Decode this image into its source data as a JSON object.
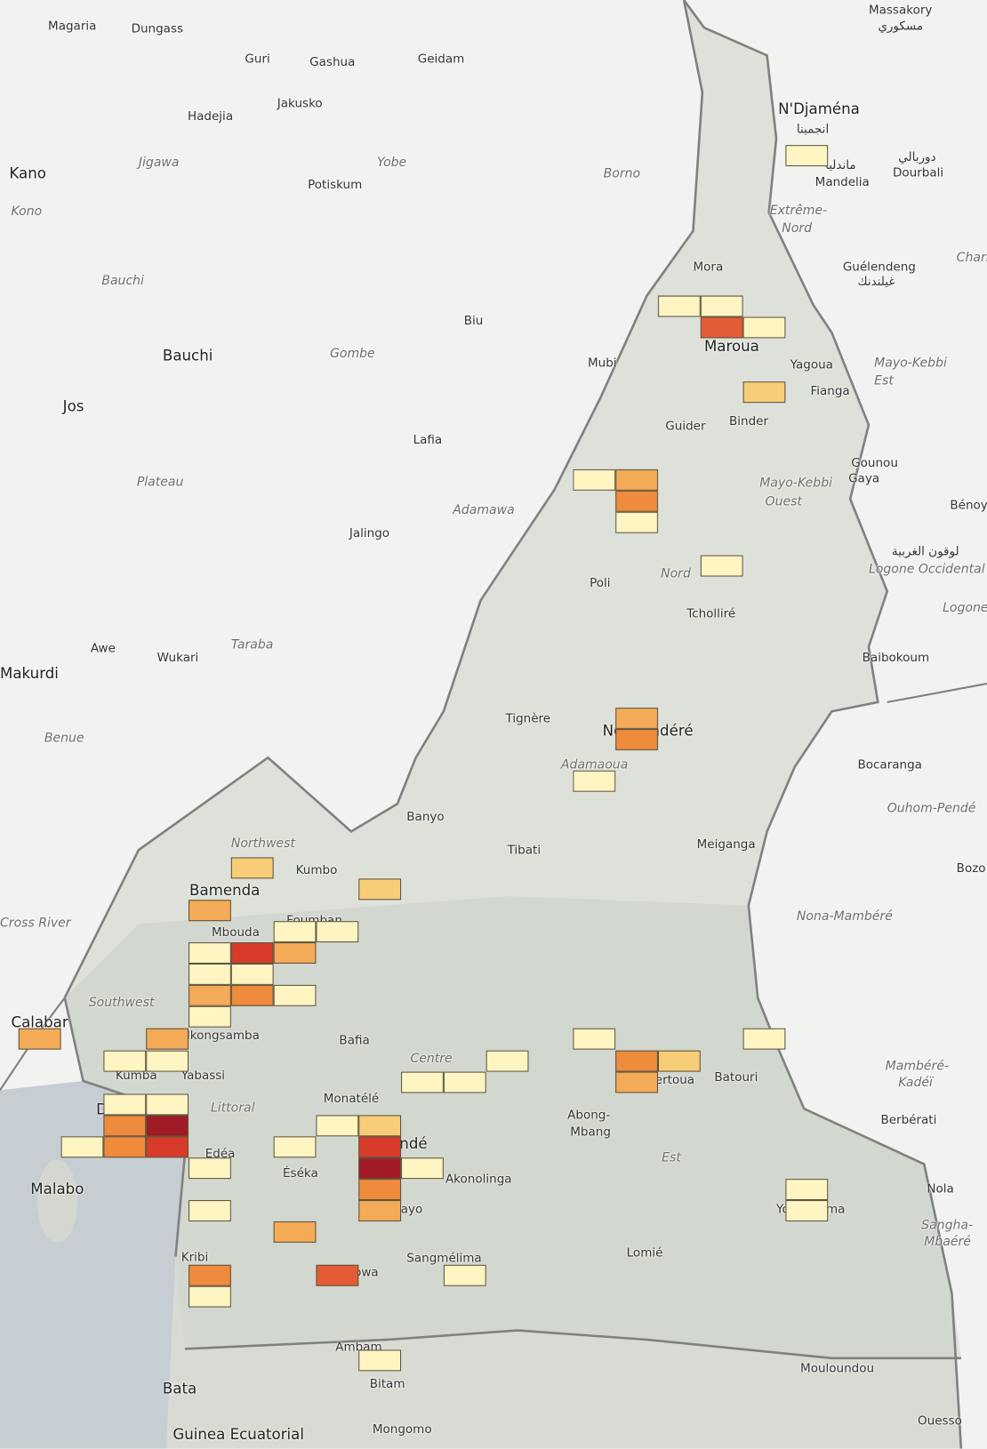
{
  "map": {
    "region": "Cameroon",
    "heat_colors": [
      "#fff5c2",
      "#f8cd78",
      "#f3ab58",
      "#ee8b3c",
      "#e45c35",
      "#d83b2a",
      "#a01b26"
    ],
    "land_color": "#f2f2f0",
    "country_color": "#dde1da",
    "sea_color": "#c6cdd3",
    "border_color": "#808080",
    "labels": [
      "Magaria",
      "Dungass",
      "Guri",
      "Gashua",
      "Geidam",
      "Massakory",
      "مسكوري",
      "Hadejia",
      "Jakusko",
      "N'Djaména",
      "انجمينا",
      "Kano",
      "Jigawa",
      "Yobe",
      "Borno",
      "Potiskum",
      "Kono",
      "ماندليا",
      "Mandelia",
      "دوربالي",
      "Dourbali",
      "Extrême-",
      "Nord",
      "Chari-Ba",
      "Bauchi",
      "Mora",
      "Guélendeng",
      "غيلندنك",
      "Biu",
      "Maroua",
      "Gombe",
      "Bauchi",
      "Mubi",
      "Yagoua",
      "Mayo-Kebbi",
      "Est",
      "Fianga",
      "Jos",
      "Guider",
      "Binder",
      "Lafia",
      "Gounou",
      "Gaya",
      "Plateau",
      "Mayo-Kebbi",
      "Ouest",
      "Adamawa",
      "Bénoy",
      "Jalingo",
      "Poli",
      "Nord",
      "لوقون الغربية",
      "Logone Occidental",
      "Tcholliré",
      "Logone",
      "Awe",
      "Wukari",
      "Taraba",
      "Makurdi",
      "Baibokoum",
      "Tignère",
      "Ngaoundéré",
      "Adamaoua",
      "Bocaranga",
      "Benue",
      "Banyo",
      "Ouhom-Pendé",
      "Tibati",
      "Meiganga",
      "Northwest",
      "Kumbo",
      "Bozo",
      "Bamenda",
      "Nona-Mambéré",
      "Foumban",
      "Mbouda",
      "Southwest",
      "Calabar",
      "Nkongsamba",
      "Bafia",
      "Centre",
      "Bertoua",
      "Batouri",
      "Mambéré-",
      "Kadéï",
      "Kumba",
      "Yabassi",
      "Littoral",
      "Monatélé",
      "Abong-",
      "Mbang",
      "Douala",
      "Berbérati",
      "Yaoundé",
      "Edéa",
      "Est",
      "Malabo",
      "Éséka",
      "Akonolinga",
      "Nola",
      "Yokadouma",
      "Mbalmayo",
      "Sangha-",
      "Mbaéré",
      "Lomié",
      "Sangmélima",
      "Kribi",
      "Ebolowa",
      "Ambam",
      "Mouloundou",
      "Bata",
      "Bitam",
      "Ouesso",
      "Guinea Ecuatorial",
      "Mongomo",
      "Cross River"
    ]
  }
}
